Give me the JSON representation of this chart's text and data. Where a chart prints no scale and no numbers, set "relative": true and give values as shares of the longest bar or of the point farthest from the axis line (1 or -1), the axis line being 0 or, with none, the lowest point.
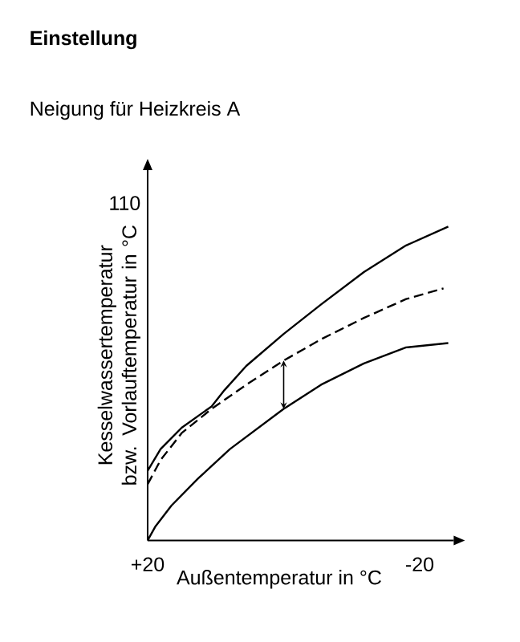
{
  "chart_data": {
    "type": "line",
    "title": "Einstellung",
    "subtitle": "Neigung für Heizkreis A",
    "xlabel": "Außentemperatur in °C",
    "ylabel": "Kesselwassertemperatur bzw. Vorlauftemperatur in °C",
    "annotations": [
      "110"
    ],
    "relative": true,
    "xlim": [
      20,
      -25
    ],
    "xticks": [
      {
        "value": 20,
        "label": "+20"
      },
      -20
    ],
    "grid": false,
    "series": [
      {
        "color": "#000000",
        "line_style": "solid",
        "x": [
          20,
          18.1,
          15.0,
          10.6,
          8.7,
          5.5,
          0.0,
          -5.5,
          -11.8,
          -18.0,
          -24.2
        ],
        "values": [
          0.222,
          0.291,
          0.359,
          0.427,
          0.479,
          0.556,
          0.658,
          0.752,
          0.855,
          0.94,
          1
        ]
      },
      {
        "color": "#000000",
        "line_style": "dashed",
        "x": [
          20,
          18.1,
          15.0,
          10.6,
          5.5,
          0.0,
          -5.5,
          -11.8,
          -18.0,
          -23.5
        ],
        "values": [
          0.179,
          0.256,
          0.342,
          0.419,
          0.496,
          0.573,
          0.641,
          0.709,
          0.769,
          0.803
        ]
      },
      {
        "color": "#000000",
        "line_style": "solid",
        "x": [
          20,
          18.9,
          16.5,
          12.6,
          7.9,
          0.0,
          -5.5,
          -11.8,
          -18.0,
          -24.2
        ],
        "values": [
          0,
          0.043,
          0.111,
          0.197,
          0.291,
          0.419,
          0.496,
          0.564,
          0.615,
          0.629
        ]
      }
    ]
  }
}
